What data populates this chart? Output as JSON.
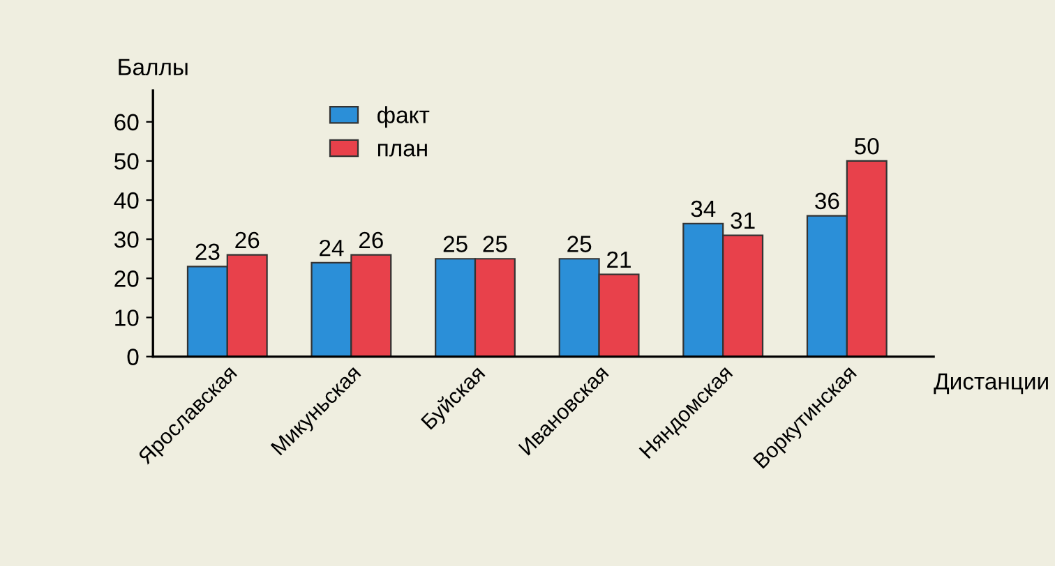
{
  "chart_data": {
    "type": "bar",
    "xlabel": "Дистанции",
    "ylabel": "Баллы",
    "categories": [
      "Ярославская",
      "Микуньская",
      "Буйская",
      "Ивановская",
      "Няндомская",
      "Воркутинская"
    ],
    "series": [
      {
        "name": "факт",
        "color": "#2b8fd8",
        "values": [
          23,
          24,
          25,
          25,
          34,
          36
        ]
      },
      {
        "name": "план",
        "color": "#e8414b",
        "values": [
          26,
          26,
          25,
          21,
          31,
          50
        ]
      }
    ],
    "ylim": [
      0,
      68
    ],
    "yticks": [
      0,
      10,
      20,
      30,
      40,
      50,
      60
    ],
    "data_labels": true,
    "grid": false,
    "legend": "top left"
  }
}
